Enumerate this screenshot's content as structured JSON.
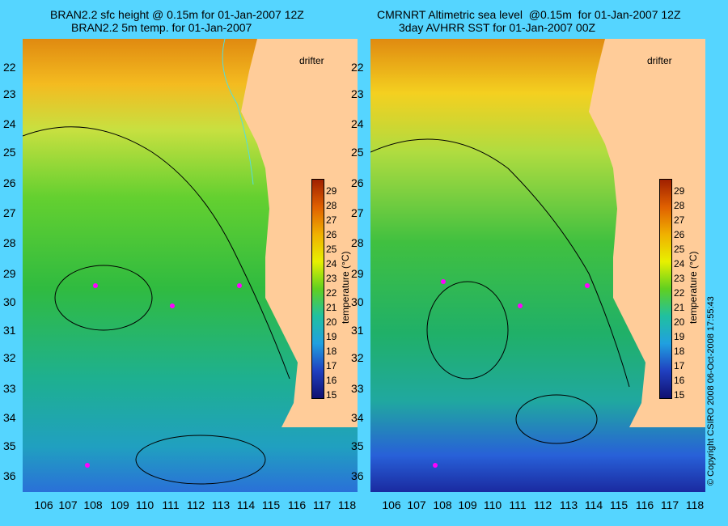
{
  "left_panel": {
    "title_line1": "BRAN2.2 sfc height @ 0.15m for 01-Jan-2007 12Z",
    "title_line2": "BRAN2.2 5m temp. for 01-Jan-2007"
  },
  "right_panel": {
    "title_line1": "CMRNRT Altimetric sea level  @0.15m  for 01-Jan-2007 12Z",
    "title_line2": "3day AVHRR SST for 01-Jan-2007 00Z"
  },
  "latitudes": [
    "22",
    "23",
    "24",
    "25",
    "26",
    "27",
    "28",
    "29",
    "30",
    "31",
    "32",
    "33",
    "34",
    "35",
    "36"
  ],
  "longitudes": [
    "106",
    "107",
    "108",
    "109",
    "110",
    "111",
    "112",
    "113",
    "114",
    "115",
    "116",
    "117",
    "118"
  ],
  "colorbar": {
    "ticks": [
      "29",
      "28",
      "27",
      "26",
      "25",
      "24",
      "23",
      "22",
      "21",
      "20",
      "19",
      "18",
      "17",
      "16",
      "15"
    ],
    "label": "temperature (°C)"
  },
  "drifter_label": "drifter",
  "copyright": "© Copyright CSIRO 2008   06-Oct-2008 17:55:43",
  "colors": {
    "background": "#55d5ff",
    "land": "#ffcc99",
    "drifter": "#ff00ff",
    "bathymetry": "#55dddd"
  }
}
